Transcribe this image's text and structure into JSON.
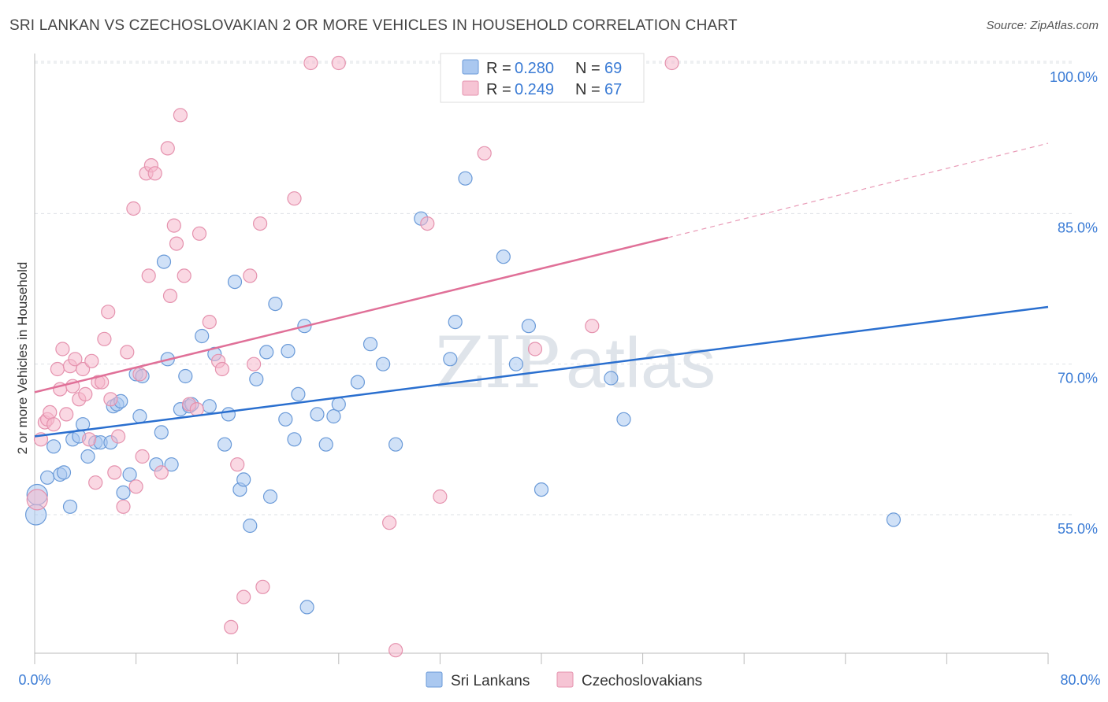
{
  "header": {
    "title": "SRI LANKAN VS CZECHOSLOVAKIAN 2 OR MORE VEHICLES IN HOUSEHOLD CORRELATION CHART",
    "source": "Source: ZipAtlas.com"
  },
  "watermark": {
    "zip": "ZIP",
    "atlas": "atlas"
  },
  "colors": {
    "blue_fill": "#aac8f0",
    "blue_line": "#2a6fcf",
    "pink_fill": "#f6b8cc",
    "pink_line": "#e07098",
    "accent_text": "#3a7bd5"
  },
  "chart_data": {
    "type": "scatter",
    "xlabel": "",
    "ylabel": "2 or more Vehicles in Household",
    "xlim": [
      0,
      80
    ],
    "ylim": [
      42,
      100
    ],
    "x_tick_labels": [
      "0.0%",
      "80.0%"
    ],
    "y_ticks": [
      55,
      70,
      85,
      100
    ],
    "y_tick_labels": [
      "55.0%",
      "70.0%",
      "85.0%",
      "100.0%"
    ],
    "legend": {
      "entries": [
        {
          "r_label": "R =",
          "r_value": "0.280",
          "n_label": "N =",
          "n_value": "69"
        },
        {
          "r_label": "R =",
          "r_value": "0.249",
          "n_label": "N =",
          "n_value": "67"
        }
      ]
    },
    "series": [
      {
        "name": "Sri Lankans",
        "color": "#aac8f0",
        "trend": {
          "x": [
            0,
            80
          ],
          "y": [
            62.8,
            75.7
          ],
          "dashed_to": null
        },
        "points": [
          [
            0.1,
            55.0
          ],
          [
            0.2,
            57.0
          ],
          [
            1.0,
            58.7
          ],
          [
            1.5,
            61.8
          ],
          [
            2.0,
            59.0
          ],
          [
            2.3,
            59.2
          ],
          [
            2.8,
            55.8
          ],
          [
            3.0,
            62.5
          ],
          [
            3.5,
            62.8
          ],
          [
            3.8,
            64.0
          ],
          [
            4.2,
            60.8
          ],
          [
            4.8,
            62.2
          ],
          [
            5.2,
            62.2
          ],
          [
            6.0,
            62.2
          ],
          [
            6.2,
            65.8
          ],
          [
            6.5,
            66.0
          ],
          [
            6.8,
            66.3
          ],
          [
            7.0,
            57.2
          ],
          [
            7.5,
            59.0
          ],
          [
            8.0,
            69.0
          ],
          [
            8.3,
            64.8
          ],
          [
            8.5,
            68.8
          ],
          [
            9.6,
            60.0
          ],
          [
            10.0,
            63.2
          ],
          [
            10.2,
            80.2
          ],
          [
            10.5,
            70.5
          ],
          [
            10.8,
            60.0
          ],
          [
            11.5,
            65.5
          ],
          [
            11.9,
            68.8
          ],
          [
            12.2,
            65.8
          ],
          [
            12.4,
            66.0
          ],
          [
            13.2,
            72.8
          ],
          [
            13.8,
            65.8
          ],
          [
            14.2,
            71.0
          ],
          [
            15.0,
            62.0
          ],
          [
            15.3,
            65.0
          ],
          [
            15.8,
            78.2
          ],
          [
            16.2,
            57.5
          ],
          [
            16.5,
            58.5
          ],
          [
            17.0,
            53.9
          ],
          [
            17.5,
            68.5
          ],
          [
            18.3,
            71.2
          ],
          [
            18.6,
            56.8
          ],
          [
            19.0,
            76.0
          ],
          [
            19.8,
            64.5
          ],
          [
            20.0,
            71.3
          ],
          [
            20.5,
            62.5
          ],
          [
            20.8,
            67.0
          ],
          [
            21.3,
            73.8
          ],
          [
            21.5,
            45.8
          ],
          [
            22.3,
            65.0
          ],
          [
            23.0,
            62.0
          ],
          [
            23.6,
            64.8
          ],
          [
            24.0,
            66.0
          ],
          [
            25.5,
            68.2
          ],
          [
            26.5,
            72.0
          ],
          [
            27.5,
            70.0
          ],
          [
            28.5,
            62.0
          ],
          [
            30.5,
            84.5
          ],
          [
            32.8,
            70.5
          ],
          [
            33.2,
            74.2
          ],
          [
            34.0,
            88.5
          ],
          [
            37.0,
            80.7
          ],
          [
            38.0,
            70.0
          ],
          [
            39.0,
            73.8
          ],
          [
            40.0,
            57.5
          ],
          [
            45.5,
            68.6
          ],
          [
            46.5,
            64.5
          ],
          [
            67.8,
            54.5
          ]
        ]
      },
      {
        "name": "Czechoslovakians",
        "color": "#f6b8cc",
        "trend": {
          "x": [
            0,
            50
          ],
          "y": [
            67.2,
            82.6
          ],
          "dashed_to": {
            "x": 80,
            "y": 92.0
          }
        },
        "points": [
          [
            0.2,
            56.5
          ],
          [
            0.5,
            62.5
          ],
          [
            0.8,
            64.2
          ],
          [
            1.0,
            64.5
          ],
          [
            1.2,
            65.2
          ],
          [
            1.5,
            64.0
          ],
          [
            1.8,
            69.5
          ],
          [
            2.0,
            67.5
          ],
          [
            2.2,
            71.5
          ],
          [
            2.5,
            65.0
          ],
          [
            2.8,
            69.8
          ],
          [
            3.0,
            67.8
          ],
          [
            3.2,
            70.5
          ],
          [
            3.5,
            66.5
          ],
          [
            3.8,
            69.5
          ],
          [
            4.0,
            67.0
          ],
          [
            4.3,
            62.5
          ],
          [
            4.5,
            70.3
          ],
          [
            4.8,
            58.2
          ],
          [
            5.0,
            68.2
          ],
          [
            5.3,
            68.2
          ],
          [
            5.5,
            72.5
          ],
          [
            5.8,
            75.2
          ],
          [
            6.0,
            66.5
          ],
          [
            6.3,
            59.2
          ],
          [
            6.6,
            62.8
          ],
          [
            7.0,
            55.8
          ],
          [
            7.3,
            71.2
          ],
          [
            7.8,
            85.5
          ],
          [
            8.0,
            57.8
          ],
          [
            8.3,
            69.0
          ],
          [
            8.5,
            60.8
          ],
          [
            8.8,
            89.0
          ],
          [
            9.0,
            78.8
          ],
          [
            9.2,
            89.8
          ],
          [
            9.5,
            89.0
          ],
          [
            10.0,
            59.2
          ],
          [
            10.5,
            91.5
          ],
          [
            10.7,
            76.8
          ],
          [
            11.0,
            83.8
          ],
          [
            11.2,
            82.0
          ],
          [
            11.5,
            94.8
          ],
          [
            11.8,
            78.8
          ],
          [
            12.2,
            66.0
          ],
          [
            13.0,
            83.0
          ],
          [
            13.8,
            74.2
          ],
          [
            14.5,
            70.3
          ],
          [
            14.8,
            69.5
          ],
          [
            15.5,
            43.8
          ],
          [
            16.0,
            60.0
          ],
          [
            16.5,
            46.8
          ],
          [
            17.0,
            78.8
          ],
          [
            17.3,
            70.0
          ],
          [
            17.8,
            84.0
          ],
          [
            18.0,
            47.8
          ],
          [
            20.5,
            86.5
          ],
          [
            21.8,
            100.0
          ],
          [
            24.0,
            100.0
          ],
          [
            28.0,
            54.2
          ],
          [
            28.5,
            41.5
          ],
          [
            31.0,
            84.0
          ],
          [
            32.0,
            56.8
          ],
          [
            35.5,
            91.0
          ],
          [
            39.5,
            71.5
          ],
          [
            44.0,
            73.8
          ],
          [
            50.3,
            100.0
          ],
          [
            12.8,
            65.5
          ]
        ]
      }
    ]
  }
}
